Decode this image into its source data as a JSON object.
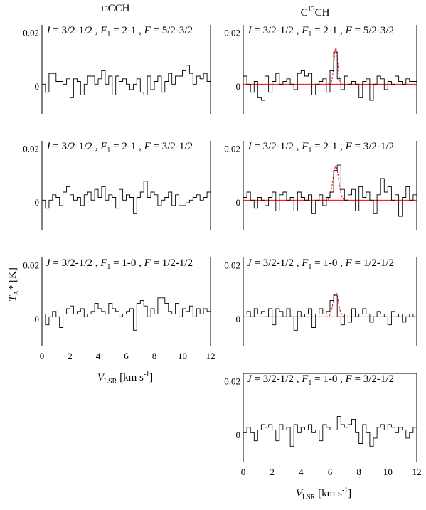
{
  "headers": {
    "left_col": "13CCH",
    "right_col": "C13CH"
  },
  "y_axis": {
    "label": "TA* [K]",
    "ticks": [
      "0",
      "0.02"
    ]
  },
  "x_axis": {
    "label": "VLSR [km s-1]",
    "ticks": [
      0,
      2,
      4,
      6,
      8,
      10,
      12
    ]
  },
  "colors": {
    "spectrum": "#000000",
    "fit": "#ff0000"
  },
  "chart_data": [
    {
      "type": "line",
      "title": "J = 3/2-1/2, F1 = 2-1, F = 5/2-3/2",
      "molecule": "13CCH",
      "xlim": [
        0,
        12
      ],
      "ylim": [
        -0.01,
        0.023
      ],
      "x": [
        0.0,
        0.25,
        0.5,
        0.75,
        1.0,
        1.25,
        1.5,
        1.75,
        2.0,
        2.25,
        2.5,
        2.75,
        3.0,
        3.25,
        3.5,
        3.75,
        4.0,
        4.25,
        4.5,
        4.75,
        5.0,
        5.25,
        5.5,
        5.75,
        6.0,
        6.25,
        6.5,
        6.75,
        7.0,
        7.25,
        7.5,
        7.75,
        8.0,
        8.25,
        8.5,
        8.75,
        9.0,
        9.25,
        9.5,
        9.75,
        10.0,
        10.25,
        10.5,
        10.75,
        11.0,
        11.25,
        11.5,
        11.75
      ],
      "y": [
        0.001,
        -0.002,
        0.005,
        0.005,
        0.002,
        0.002,
        0.001,
        0.003,
        -0.004,
        0.003,
        0.002,
        -0.003,
        0.001,
        0.004,
        0.004,
        0.001,
        0.003,
        0.006,
        0.001,
        0.004,
        -0.003,
        0.004,
        0.002,
        0.003,
        0.001,
        -0.001,
        0.001,
        0.003,
        -0.002,
        -0.003,
        0.004,
        -0.001,
        0.002,
        0.004,
        -0.002,
        0.002,
        0.005,
        0.001,
        0.004,
        0.004,
        0.006,
        0.008,
        0.005,
        0.001,
        0.004,
        0.003,
        0.005,
        0.002
      ]
    },
    {
      "type": "line",
      "title": "J = 3/2-1/2, F1 = 2-1, F = 5/2-3/2",
      "molecule": "C13CH",
      "xlim": [
        0,
        12
      ],
      "ylim": [
        -0.01,
        0.023
      ],
      "x": [
        0.0,
        0.25,
        0.5,
        0.75,
        1.0,
        1.25,
        1.5,
        1.75,
        2.0,
        2.25,
        2.5,
        2.75,
        3.0,
        3.25,
        3.5,
        3.75,
        4.0,
        4.25,
        4.5,
        4.75,
        5.0,
        5.25,
        5.5,
        5.75,
        6.0,
        6.25,
        6.5,
        6.75,
        7.0,
        7.25,
        7.5,
        7.75,
        8.0,
        8.25,
        8.5,
        8.75,
        9.0,
        9.25,
        9.5,
        9.75,
        10.0,
        10.25,
        10.5,
        10.75,
        11.0,
        11.25,
        11.5,
        11.75
      ],
      "y": [
        0.004,
        0.001,
        -0.002,
        0.002,
        -0.004,
        -0.005,
        0.004,
        -0.002,
        0.002,
        0.005,
        0.001,
        0.002,
        0.003,
        0.001,
        -0.001,
        0.005,
        0.006,
        0.004,
        0.005,
        -0.003,
        0.001,
        0.002,
        0.003,
        -0.002,
        0.006,
        0.013,
        0.003,
        -0.001,
        0.004,
        0.001,
        0.002,
        0.001,
        -0.004,
        0.002,
        0.003,
        -0.005,
        0.001,
        0.004,
        0.003,
        -0.001,
        0.002,
        0.001,
        0.004,
        0.002,
        0.001,
        0.003,
        0.002,
        0.002
      ],
      "fit": {
        "baseline": 0.001,
        "amplitude": 0.0135,
        "center": 6.4,
        "sigma": 0.13
      }
    },
    {
      "type": "line",
      "title": "J = 3/2-1/2, F1 = 2-1, F = 3/2-1/2",
      "molecule": "13CCH",
      "xlim": [
        0,
        12
      ],
      "ylim": [
        -0.01,
        0.023
      ],
      "x": [
        0.0,
        0.25,
        0.5,
        0.75,
        1.0,
        1.25,
        1.5,
        1.75,
        2.0,
        2.25,
        2.5,
        2.75,
        3.0,
        3.25,
        3.5,
        3.75,
        4.0,
        4.25,
        4.5,
        4.75,
        5.0,
        5.25,
        5.5,
        5.75,
        6.0,
        6.25,
        6.5,
        6.75,
        7.0,
        7.25,
        7.5,
        7.75,
        8.0,
        8.25,
        8.5,
        8.75,
        9.0,
        9.25,
        9.5,
        9.75,
        10.0,
        10.25,
        10.5,
        10.75,
        11.0,
        11.25,
        11.5,
        11.75
      ],
      "y": [
        0.001,
        -0.002,
        0.001,
        0.003,
        0.002,
        -0.001,
        0.004,
        0.006,
        0.003,
        0.001,
        0.002,
        -0.001,
        0.003,
        0.004,
        0.001,
        0.005,
        0.002,
        0.006,
        0.001,
        0.003,
        0.002,
        -0.002,
        0.005,
        0.001,
        0.003,
        0.002,
        -0.004,
        0.002,
        0.004,
        0.008,
        0.002,
        0.004,
        0.003,
        -0.001,
        0.001,
        0.002,
        0.004,
        -0.001,
        0.003,
        -0.001,
        -0.001,
        0.0,
        0.001,
        0.002,
        0.003,
        0.001,
        0.002,
        0.004
      ]
    },
    {
      "type": "line",
      "title": "J = 3/2-1/2, F1 = 2-1, F = 3/2-1/2",
      "molecule": "C13CH",
      "xlim": [
        0,
        12
      ],
      "ylim": [
        -0.01,
        0.023
      ],
      "x": [
        0.0,
        0.25,
        0.5,
        0.75,
        1.0,
        1.25,
        1.5,
        1.75,
        2.0,
        2.25,
        2.5,
        2.75,
        3.0,
        3.25,
        3.5,
        3.75,
        4.0,
        4.25,
        4.5,
        4.75,
        5.0,
        5.25,
        5.5,
        5.75,
        6.0,
        6.25,
        6.5,
        6.75,
        7.0,
        7.25,
        7.5,
        7.75,
        8.0,
        8.25,
        8.5,
        8.75,
        9.0,
        9.25,
        9.5,
        9.75,
        10.0,
        10.25,
        10.5,
        10.75,
        11.0,
        11.25,
        11.5,
        11.75
      ],
      "y": [
        0.002,
        0.004,
        0.001,
        -0.002,
        0.002,
        0.001,
        -0.001,
        0.002,
        0.004,
        -0.003,
        0.003,
        0.004,
        0.001,
        0.002,
        -0.003,
        0.004,
        0.002,
        0.001,
        0.003,
        -0.004,
        0.001,
        0.003,
        -0.001,
        0.002,
        0.004,
        0.012,
        0.014,
        0.005,
        0.001,
        0.003,
        0.005,
        -0.003,
        0.006,
        0.002,
        0.004,
        0.001,
        -0.004,
        0.003,
        0.009,
        0.004,
        0.006,
        0.001,
        0.003,
        -0.005,
        0.002,
        0.006,
        0.001,
        0.003
      ],
      "fit": {
        "baseline": 0.001,
        "amplitude": 0.0125,
        "center": 6.4,
        "sigma": 0.2
      }
    },
    {
      "type": "line",
      "title": "J = 3/2-1/2, F1 = 1-0, F = 1/2-1/2",
      "molecule": "13CCH",
      "xlim": [
        0,
        12
      ],
      "ylim": [
        -0.01,
        0.023
      ],
      "x": [
        0.0,
        0.25,
        0.5,
        0.75,
        1.0,
        1.25,
        1.5,
        1.75,
        2.0,
        2.25,
        2.5,
        2.75,
        3.0,
        3.25,
        3.5,
        3.75,
        4.0,
        4.25,
        4.5,
        4.75,
        5.0,
        5.25,
        5.5,
        5.75,
        6.0,
        6.25,
        6.5,
        6.75,
        7.0,
        7.25,
        7.5,
        7.75,
        8.0,
        8.25,
        8.5,
        8.75,
        9.0,
        9.25,
        9.5,
        9.75,
        10.0,
        10.25,
        10.5,
        10.75,
        11.0,
        11.25,
        11.5,
        11.75
      ],
      "y": [
        0.002,
        -0.002,
        0.001,
        0.003,
        0.001,
        -0.003,
        0.002,
        0.004,
        0.005,
        0.002,
        0.003,
        0.004,
        0.001,
        0.002,
        0.003,
        0.006,
        0.004,
        0.003,
        0.002,
        0.006,
        0.004,
        0.003,
        0.001,
        0.002,
        0.003,
        0.004,
        -0.004,
        0.006,
        0.007,
        0.005,
        0.001,
        0.004,
        0.002,
        0.008,
        0.008,
        0.006,
        0.003,
        0.002,
        0.006,
        0.001,
        0.004,
        0.003,
        0.005,
        0.001,
        0.004,
        0.002,
        0.004,
        0.003
      ]
    },
    {
      "type": "line",
      "title": "J = 3/2-1/2, F1 = 1-0, F = 1/2-1/2",
      "molecule": "C13CH",
      "xlim": [
        0,
        12
      ],
      "ylim": [
        -0.01,
        0.023
      ],
      "x": [
        0.0,
        0.25,
        0.5,
        0.75,
        1.0,
        1.25,
        1.5,
        1.75,
        2.0,
        2.25,
        2.5,
        2.75,
        3.0,
        3.25,
        3.5,
        3.75,
        4.0,
        4.25,
        4.5,
        4.75,
        5.0,
        5.25,
        5.5,
        5.75,
        6.0,
        6.25,
        6.5,
        6.75,
        7.0,
        7.25,
        7.5,
        7.75,
        8.0,
        8.25,
        8.5,
        8.75,
        9.0,
        9.25,
        9.5,
        9.75,
        10.0,
        10.25,
        10.5,
        10.75,
        11.0,
        11.25,
        11.5,
        11.75
      ],
      "y": [
        0.002,
        0.003,
        0.001,
        0.004,
        0.002,
        0.003,
        0.001,
        0.004,
        -0.002,
        0.004,
        0.003,
        0.001,
        0.004,
        0.001,
        -0.004,
        0.003,
        0.001,
        0.002,
        0.004,
        -0.003,
        0.002,
        0.004,
        0.002,
        0.003,
        0.007,
        0.009,
        0.001,
        -0.002,
        0.002,
        -0.001,
        0.004,
        0.001,
        0.002,
        0.004,
        0.002,
        -0.001,
        0.001,
        0.003,
        0.002,
        0.001,
        -0.002,
        0.003,
        0.001,
        0.002,
        -0.001,
        0.001,
        0.002,
        0.001
      ],
      "fit": {
        "baseline": 0.001,
        "amplitude": 0.009,
        "center": 6.4,
        "sigma": 0.18
      }
    },
    {
      "type": "line",
      "title": "J = 3/2-1/2, F1 = 1-0, F = 3/2-1/2",
      "molecule": "C13CH",
      "xlim": [
        0,
        12
      ],
      "ylim": [
        -0.01,
        0.023
      ],
      "x": [
        0.0,
        0.25,
        0.5,
        0.75,
        1.0,
        1.25,
        1.5,
        1.75,
        2.0,
        2.25,
        2.5,
        2.75,
        3.0,
        3.25,
        3.5,
        3.75,
        4.0,
        4.25,
        4.5,
        4.75,
        5.0,
        5.25,
        5.5,
        5.75,
        6.0,
        6.25,
        6.5,
        6.75,
        7.0,
        7.25,
        7.5,
        7.75,
        8.0,
        8.25,
        8.5,
        8.75,
        9.0,
        9.25,
        9.5,
        9.75,
        10.0,
        10.25,
        10.5,
        10.75,
        11.0,
        11.25,
        11.5,
        11.75
      ],
      "y": [
        0.001,
        0.003,
        0.001,
        -0.002,
        0.002,
        0.004,
        0.003,
        0.004,
        0.002,
        -0.002,
        0.004,
        0.002,
        0.003,
        -0.004,
        0.004,
        0.001,
        0.003,
        0.002,
        0.004,
        0.001,
        0.002,
        -0.002,
        0.004,
        0.003,
        0.002,
        0.002,
        0.007,
        0.004,
        0.003,
        0.004,
        0.006,
        0.001,
        -0.003,
        0.004,
        0.001,
        -0.004,
        -0.001,
        0.003,
        0.004,
        0.002,
        0.004,
        0.003,
        0.001,
        0.003,
        0.002,
        -0.001,
        0.001,
        0.003
      ]
    }
  ]
}
